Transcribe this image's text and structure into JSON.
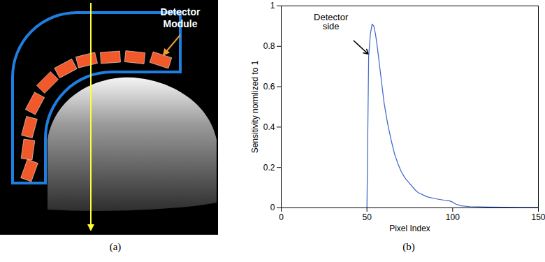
{
  "chart_data": {
    "type": "line",
    "caption": "(b)",
    "xlabel": "Pixel Index",
    "ylabel": "Sensitivity normlized to 1",
    "x": [
      50,
      51,
      52,
      53,
      54,
      55,
      56,
      57,
      58,
      59,
      60,
      62,
      64,
      66,
      68,
      70,
      72,
      75,
      78,
      80,
      85,
      90,
      95,
      98,
      100,
      102,
      105,
      110,
      120,
      130,
      140,
      150
    ],
    "values": [
      0,
      0.75,
      0.86,
      0.91,
      0.9,
      0.86,
      0.8,
      0.73,
      0.66,
      0.59,
      0.52,
      0.42,
      0.34,
      0.27,
      0.22,
      0.18,
      0.15,
      0.12,
      0.09,
      0.075,
      0.055,
      0.045,
      0.038,
      0.035,
      0.028,
      0.018,
      0.01,
      0.006,
      0.004,
      0.003,
      0.002,
      0.002
    ],
    "color": "#3a62c9",
    "xlim": [
      0,
      150
    ],
    "xticks": [
      0,
      50,
      100,
      150
    ],
    "ylim": [
      0,
      1
    ],
    "yticks": [
      0,
      0.2,
      0.4,
      0.6,
      0.8,
      1
    ],
    "annotations": [
      {
        "text": "Detector side",
        "x": 51,
        "y": 0.76
      }
    ]
  },
  "diagram": {
    "caption": "(a)",
    "label": "Detector Module"
  }
}
